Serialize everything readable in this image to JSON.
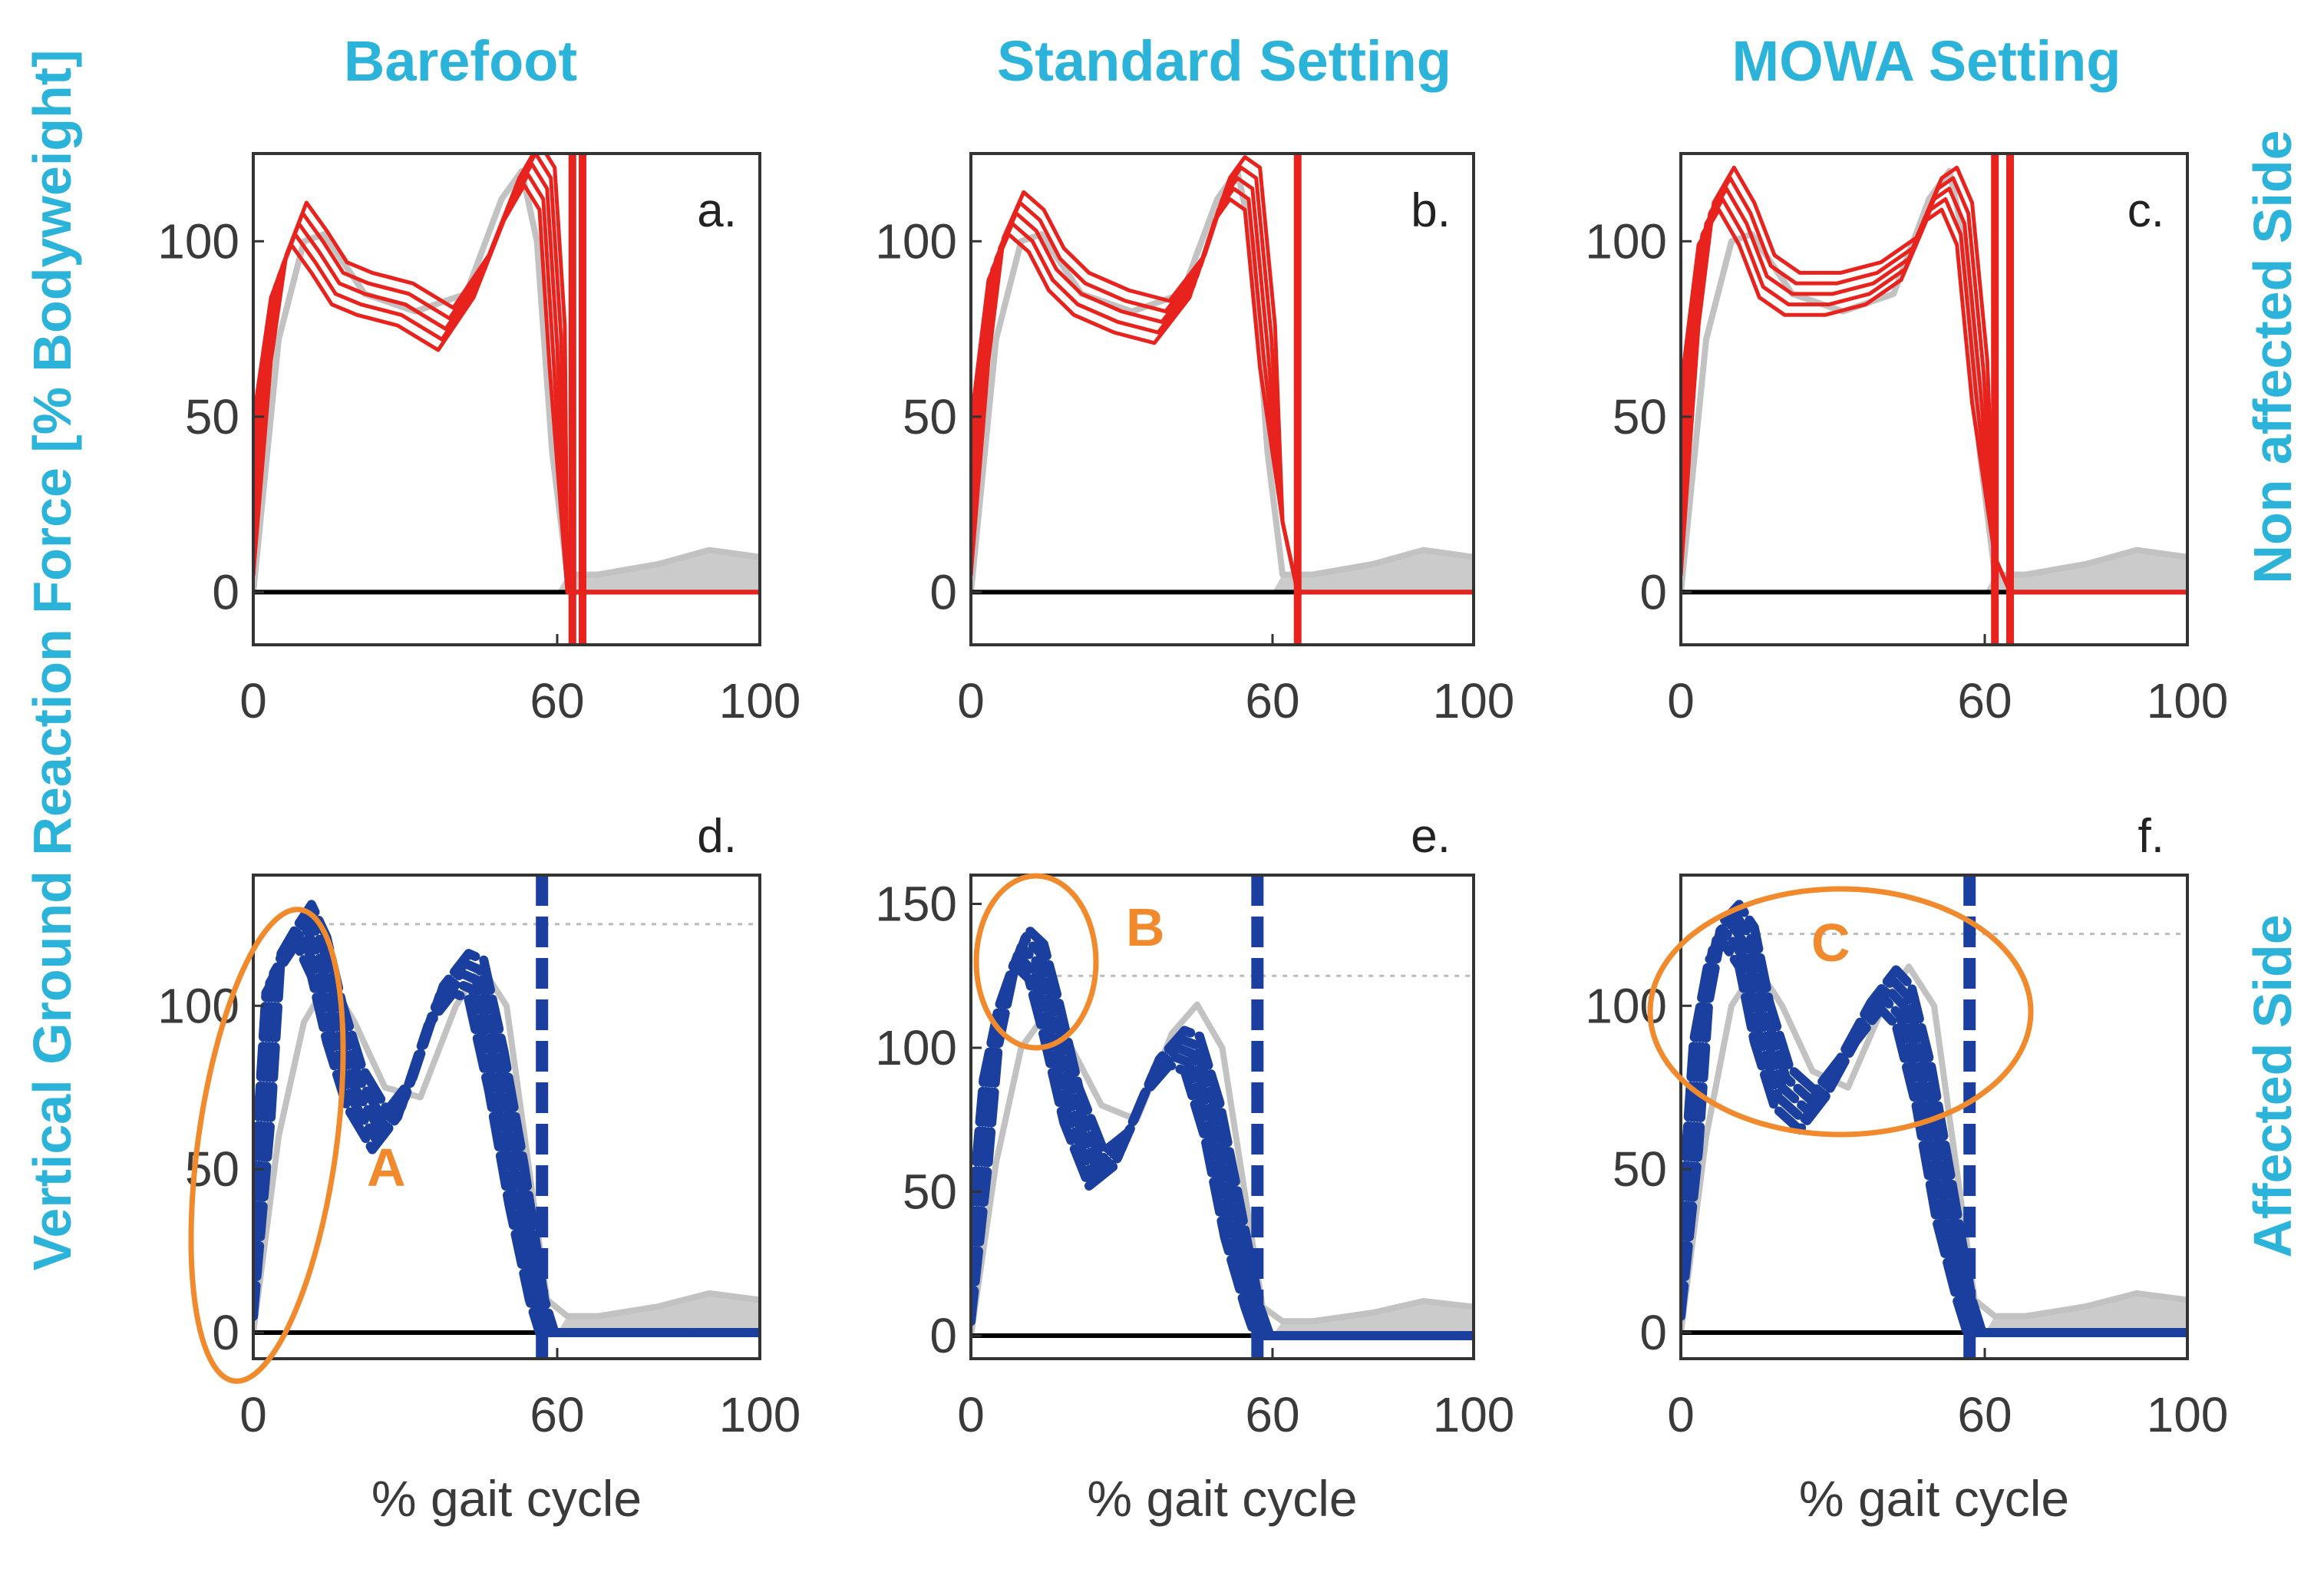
{
  "colors": {
    "title": "#2bb3da",
    "non_affected": "#e8231e",
    "affected": "#1a3f9e",
    "reference": "#c2c2c2",
    "annotation": "#f08a2c"
  },
  "figure": {
    "column_titles": [
      "Barefoot",
      "Standard Setting",
      "MOWA Setting"
    ],
    "ylabel": "Vertical  Ground Reaction Force [% Bodyweight]",
    "row_labels": [
      "Non affected Side",
      "Affected Side"
    ]
  },
  "chart_data": [
    {
      "panel": "a.",
      "row": "Non affected Side",
      "condition": "Barefoot",
      "type": "line",
      "xlabel": "",
      "ylabel": "Vertical  Ground Reaction Force [% Bodyweight]",
      "xlim": [
        0,
        100
      ],
      "ylim": [
        -15,
        125
      ],
      "xticks": [
        "0",
        "60",
        "100"
      ],
      "yticks": [
        "0",
        "50",
        "100"
      ],
      "series": [
        {
          "name": "non-affected trials",
          "x": [
            0,
            2,
            5,
            9,
            13,
            17,
            22,
            30,
            38,
            45,
            51,
            55,
            58,
            60,
            62,
            65,
            100
          ],
          "y": [
            5,
            60,
            90,
            105,
            97,
            88,
            85,
            82,
            75,
            90,
            112,
            122,
            115,
            70,
            0,
            0,
            0
          ]
        }
      ],
      "reference": {
        "x": [
          0,
          5,
          10,
          14,
          22,
          32,
          42,
          49,
          53,
          56,
          59,
          62,
          68,
          80,
          90,
          100
        ],
        "y": [
          0,
          72,
          100,
          102,
          85,
          80,
          85,
          112,
          120,
          100,
          40,
          5,
          5,
          8,
          12,
          10
        ]
      },
      "verticals": [
        63,
        65
      ],
      "annotation": null
    },
    {
      "panel": "b.",
      "row": "Non affected Side",
      "condition": "Standard Setting",
      "type": "line",
      "xlabel": "",
      "ylabel": "",
      "xlim": [
        0,
        100
      ],
      "ylim": [
        -15,
        125
      ],
      "xticks": [
        "0",
        "60",
        "100"
      ],
      "yticks": [
        "0",
        "50",
        "100"
      ],
      "series": [
        {
          "name": "non-affected trials",
          "x": [
            0,
            2,
            5,
            9,
            13,
            17,
            22,
            30,
            38,
            45,
            50,
            53,
            56,
            59,
            62,
            65,
            100
          ],
          "y": [
            5,
            60,
            95,
            108,
            103,
            92,
            85,
            80,
            77,
            90,
            112,
            118,
            115,
            70,
            20,
            0,
            0
          ]
        }
      ],
      "reference": {
        "x": [
          0,
          5,
          10,
          14,
          22,
          32,
          42,
          49,
          53,
          56,
          59,
          62,
          68,
          80,
          90,
          100
        ],
        "y": [
          0,
          72,
          100,
          102,
          85,
          80,
          85,
          112,
          120,
          100,
          40,
          5,
          5,
          8,
          12,
          10
        ]
      },
      "verticals": [
        65
      ],
      "annotation": null
    },
    {
      "panel": "c.",
      "row": "Non affected Side",
      "condition": "MOWA Setting",
      "type": "line",
      "xlabel": "",
      "ylabel": "",
      "xlim": [
        0,
        100
      ],
      "ylim": [
        -15,
        125
      ],
      "xticks": [
        "0",
        "60",
        "100"
      ],
      "yticks": [
        "0",
        "50",
        "100"
      ],
      "series": [
        {
          "name": "non-affected trials",
          "x": [
            0,
            2,
            5,
            9,
            13,
            17,
            22,
            30,
            38,
            45,
            50,
            53,
            56,
            59,
            62,
            65,
            100
          ],
          "y": [
            5,
            70,
            105,
            115,
            105,
            90,
            85,
            85,
            88,
            95,
            112,
            115,
            105,
            60,
            10,
            0,
            0
          ]
        }
      ],
      "reference": {
        "x": [
          0,
          5,
          10,
          14,
          22,
          32,
          42,
          49,
          53,
          56,
          59,
          62,
          68,
          80,
          90,
          100
        ],
        "y": [
          0,
          72,
          100,
          102,
          85,
          80,
          85,
          112,
          120,
          100,
          40,
          5,
          5,
          8,
          12,
          10
        ]
      },
      "verticals": [
        62,
        65
      ],
      "annotation": null
    },
    {
      "panel": "d.",
      "row": "Affected Side",
      "condition": "Barefoot",
      "type": "line",
      "xlabel": "% gait cycle",
      "ylabel": "Vertical  Ground Reaction Force [% Bodyweight]",
      "xlim": [
        0,
        100
      ],
      "ylim": [
        -8,
        140
      ],
      "xticks": [
        "0",
        "60",
        "100"
      ],
      "yticks": [
        "0",
        "50",
        "100"
      ],
      "series": [
        {
          "name": "affected trials",
          "x": [
            0,
            2,
            4,
            7,
            10,
            13,
            16,
            20,
            25,
            30,
            36,
            41,
            44,
            48,
            52,
            56,
            58,
            60,
            65,
            100
          ],
          "y": [
            5,
            60,
            110,
            118,
            125,
            115,
            95,
            75,
            62,
            72,
            100,
            110,
            108,
            80,
            45,
            10,
            0,
            0,
            0,
            0
          ]
        }
      ],
      "reference": {
        "x": [
          0,
          5,
          10,
          15,
          20,
          26,
          33,
          40,
          45,
          50,
          54,
          58,
          62,
          68,
          80,
          90,
          100
        ],
        "y": [
          0,
          60,
          95,
          108,
          95,
          75,
          72,
          100,
          112,
          100,
          55,
          10,
          5,
          5,
          8,
          12,
          10
        ]
      },
      "verticals": [
        57
      ],
      "dotted_peak": 125,
      "annotation": {
        "label": "A",
        "shape": "ellipse"
      }
    },
    {
      "panel": "e.",
      "row": "Affected Side",
      "condition": "Standard Setting",
      "type": "line",
      "xlabel": "% gait cycle",
      "ylabel": "",
      "xlim": [
        0,
        100
      ],
      "ylim": [
        -8,
        160
      ],
      "xticks": [
        "0",
        "60",
        "100"
      ],
      "yticks": [
        "0",
        "50",
        "100",
        "150"
      ],
      "series": [
        {
          "name": "affected trials",
          "x": [
            0,
            2,
            4,
            7,
            10,
            13,
            16,
            20,
            25,
            30,
            36,
            41,
            44,
            48,
            52,
            56,
            58,
            60,
            65,
            100
          ],
          "y": [
            5,
            55,
            95,
            120,
            135,
            130,
            110,
            80,
            58,
            65,
            90,
            100,
            98,
            75,
            40,
            10,
            0,
            0,
            0,
            0
          ]
        }
      ],
      "reference": {
        "x": [
          0,
          5,
          10,
          15,
          20,
          26,
          33,
          40,
          45,
          50,
          54,
          58,
          62,
          68,
          80,
          90,
          100
        ],
        "y": [
          0,
          60,
          100,
          112,
          100,
          80,
          75,
          105,
          115,
          100,
          55,
          10,
          5,
          5,
          8,
          12,
          10
        ]
      },
      "verticals": [
        57
      ],
      "dotted_peak": 125,
      "annotation": {
        "label": "B",
        "shape": "ellipse"
      }
    },
    {
      "panel": "f.",
      "row": "Affected Side",
      "condition": "MOWA Setting",
      "type": "line",
      "xlabel": "% gait cycle",
      "ylabel": "",
      "xlim": [
        0,
        100
      ],
      "ylim": [
        -8,
        140
      ],
      "xticks": [
        "0",
        "60",
        "100"
      ],
      "yticks": [
        "0",
        "50",
        "100"
      ],
      "series": [
        {
          "name": "affected trials",
          "x": [
            0,
            2,
            4,
            7,
            10,
            13,
            16,
            20,
            25,
            30,
            36,
            41,
            44,
            48,
            52,
            56,
            58,
            60,
            65,
            100
          ],
          "y": [
            5,
            50,
            95,
            120,
            125,
            118,
            95,
            75,
            68,
            78,
            95,
            105,
            100,
            75,
            40,
            10,
            0,
            0,
            0,
            0
          ]
        }
      ],
      "reference": {
        "x": [
          0,
          5,
          10,
          15,
          20,
          26,
          33,
          40,
          45,
          50,
          54,
          58,
          62,
          68,
          80,
          90,
          100
        ],
        "y": [
          0,
          60,
          100,
          112,
          100,
          80,
          75,
          100,
          112,
          100,
          55,
          10,
          5,
          5,
          8,
          12,
          10
        ]
      },
      "verticals": [
        57
      ],
      "dotted_peak": 122,
      "annotation": {
        "label": "C",
        "shape": "ellipse"
      }
    }
  ]
}
